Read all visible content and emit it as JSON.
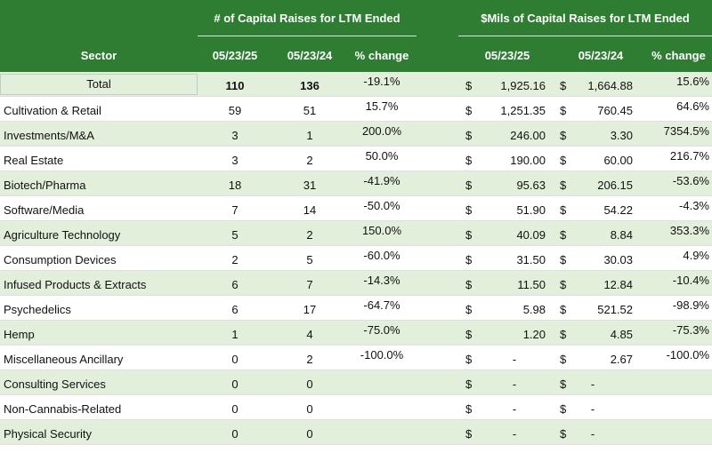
{
  "header": {
    "group_count_title": "# of Capital Raises for LTM  Ended",
    "group_mils_title": "$Mils of Capital Raises for LTM Ended",
    "sector_label": "Sector",
    "date_a": "05/23/25",
    "date_b": "05/23/24",
    "pct_change_label": "% change",
    "date_c": "05/23/25",
    "date_d": "05/23/24",
    "pct_change_label_2": "% change"
  },
  "rows": [
    {
      "sector": "Total",
      "n25": "110",
      "n24": "136",
      "pct_n": "-19.1%",
      "cur_a": "$",
      "m25": "1,925.16",
      "cur_b": "$",
      "m24": "1,664.88",
      "pct_m": "15.6%"
    },
    {
      "sector": "Cultivation & Retail",
      "n25": "59",
      "n24": "51",
      "pct_n": "15.7%",
      "cur_a": "$",
      "m25": "1,251.35",
      "cur_b": "$",
      "m24": "760.45",
      "pct_m": "64.6%"
    },
    {
      "sector": "Investments/M&A",
      "n25": "3",
      "n24": "1",
      "pct_n": "200.0%",
      "cur_a": "$",
      "m25": "246.00",
      "cur_b": "$",
      "m24": "3.30",
      "pct_m": "7354.5%"
    },
    {
      "sector": "Real Estate",
      "n25": "3",
      "n24": "2",
      "pct_n": "50.0%",
      "cur_a": "$",
      "m25": "190.00",
      "cur_b": "$",
      "m24": "60.00",
      "pct_m": "216.7%"
    },
    {
      "sector": "Biotech/Pharma",
      "n25": "18",
      "n24": "31",
      "pct_n": "-41.9%",
      "cur_a": "$",
      "m25": "95.63",
      "cur_b": "$",
      "m24": "206.15",
      "pct_m": "-53.6%"
    },
    {
      "sector": "Software/Media",
      "n25": "7",
      "n24": "14",
      "pct_n": "-50.0%",
      "cur_a": "$",
      "m25": "51.90",
      "cur_b": "$",
      "m24": "54.22",
      "pct_m": "-4.3%"
    },
    {
      "sector": "Agriculture Technology",
      "n25": "5",
      "n24": "2",
      "pct_n": "150.0%",
      "cur_a": "$",
      "m25": "40.09",
      "cur_b": "$",
      "m24": "8.84",
      "pct_m": "353.3%"
    },
    {
      "sector": "Consumption Devices",
      "n25": "2",
      "n24": "5",
      "pct_n": "-60.0%",
      "cur_a": "$",
      "m25": "31.50",
      "cur_b": "$",
      "m24": "30.03",
      "pct_m": "4.9%"
    },
    {
      "sector": "Infused Products & Extracts",
      "n25": "6",
      "n24": "7",
      "pct_n": "-14.3%",
      "cur_a": "$",
      "m25": "11.50",
      "cur_b": "$",
      "m24": "12.84",
      "pct_m": "-10.4%"
    },
    {
      "sector": "Psychedelics",
      "n25": "6",
      "n24": "17",
      "pct_n": "-64.7%",
      "cur_a": "$",
      "m25": "5.98",
      "cur_b": "$",
      "m24": "521.52",
      "pct_m": "-98.9%"
    },
    {
      "sector": "Hemp",
      "n25": "1",
      "n24": "4",
      "pct_n": "-75.0%",
      "cur_a": "$",
      "m25": "1.20",
      "cur_b": "$",
      "m24": "4.85",
      "pct_m": "-75.3%"
    },
    {
      "sector": "Miscellaneous Ancillary",
      "n25": "0",
      "n24": "2",
      "pct_n": "-100.0%",
      "cur_a": "$",
      "m25": "-",
      "cur_b": "$",
      "m24": "2.67",
      "pct_m": "-100.0%"
    },
    {
      "sector": "Consulting Services",
      "n25": "0",
      "n24": "0",
      "pct_n": "",
      "cur_a": "$",
      "m25": "-",
      "cur_b": "$",
      "m24": "-",
      "pct_m": ""
    },
    {
      "sector": "Non-Cannabis-Related",
      "n25": "0",
      "n24": "0",
      "pct_n": "",
      "cur_a": "$",
      "m25": "-",
      "cur_b": "$",
      "m24": "-",
      "pct_m": ""
    },
    {
      "sector": "Physical Security",
      "n25": "0",
      "n24": "0",
      "pct_n": "",
      "cur_a": "$",
      "m25": "-",
      "cur_b": "$",
      "m24": "-",
      "pct_m": ""
    }
  ],
  "colors": {
    "header_green": "#2e7d32",
    "alt_row_green": "#e2efda"
  }
}
